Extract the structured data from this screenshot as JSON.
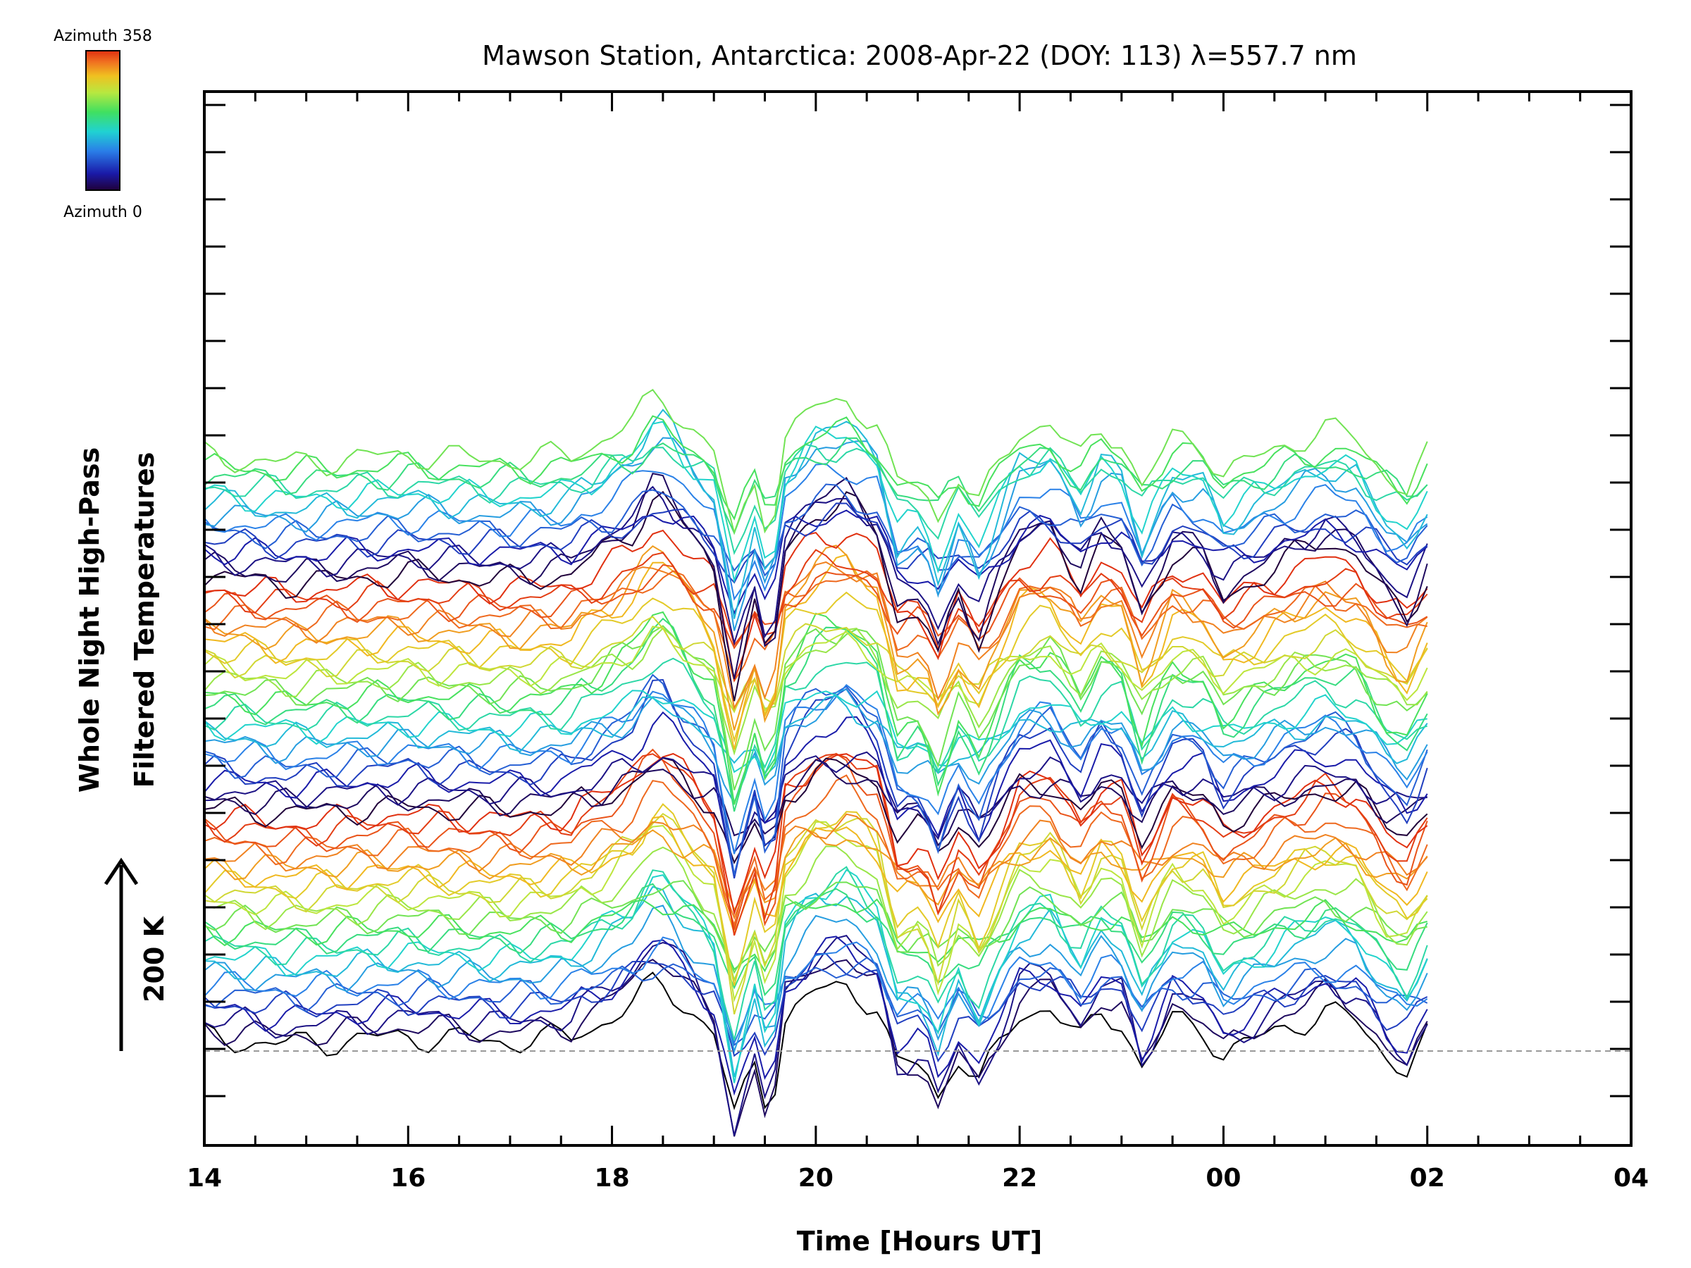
{
  "chart_data": {
    "type": "line",
    "title": "Mawson Station, Antarctica: 2008-Apr-22 (DOY: 113) λ=557.7 nm",
    "xlabel": "Time [Hours UT]",
    "ylabel_line1": "Whole Night High-Pass",
    "ylabel_line2": "Filtered Temperatures",
    "scale_bar_label": "200 K",
    "x_tick_labels": [
      "14",
      "16",
      "18",
      "20",
      "22",
      "00",
      "02",
      "04"
    ],
    "xlim_hours": [
      14,
      28
    ],
    "data_end_hour": 26.03,
    "grid": false,
    "legend": {
      "placement": "top-left",
      "type": "colorbar",
      "top_label": "Azimuth 358",
      "bottom_label": "Azimuth 0",
      "colormap": [
        "#20003a",
        "#1a1aa8",
        "#2a7ee8",
        "#20d2d2",
        "#40e060",
        "#b8e840",
        "#f0c020",
        "#f07020",
        "#e03010"
      ]
    },
    "series_count": 64,
    "series_note_azimuth_range": [
      0,
      358
    ],
    "baseline_style": "dashed gray",
    "dashed_baseline_color": "#999999",
    "profile_knots_hours": [
      14.0,
      14.8,
      15.3,
      16.0,
      16.5,
      17.0,
      17.5,
      17.8,
      18.2,
      18.45,
      18.6,
      18.8,
      19.0,
      19.2,
      19.4,
      19.55,
      19.7,
      20.0,
      20.3,
      20.6,
      20.8,
      21.05,
      21.2,
      21.4,
      21.6,
      21.8,
      22.0,
      22.3,
      22.6,
      22.8,
      23.0,
      23.2,
      23.5,
      23.8,
      24.0,
      24.3,
      24.6,
      25.0,
      25.3,
      25.6,
      25.8,
      26.03
    ],
    "profile_knots_kelvin": [
      10,
      -10,
      0,
      15,
      5,
      0,
      10,
      20,
      50,
      90,
      70,
      40,
      10,
      -110,
      -30,
      -100,
      30,
      70,
      80,
      50,
      -40,
      -30,
      -80,
      -20,
      -60,
      -10,
      40,
      50,
      0,
      40,
      30,
      -40,
      30,
      20,
      -20,
      0,
      20,
      40,
      30,
      -20,
      -40,
      10
    ]
  }
}
